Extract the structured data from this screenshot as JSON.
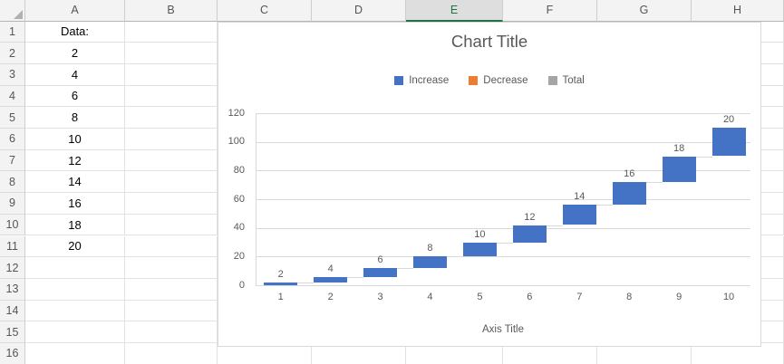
{
  "spreadsheet": {
    "column_headers": [
      "A",
      "B",
      "C",
      "D",
      "E",
      "F",
      "G",
      "H"
    ],
    "selected_column": "E",
    "row_labels": [
      "1",
      "2",
      "3",
      "4",
      "5",
      "6",
      "7",
      "8",
      "9",
      "10",
      "11",
      "12",
      "13",
      "14",
      "15",
      "16"
    ],
    "col_a": [
      "Data:",
      "2",
      "4",
      "6",
      "8",
      "10",
      "12",
      "14",
      "16",
      "18",
      "20"
    ]
  },
  "chart_data": {
    "type": "bar",
    "subtype": "waterfall",
    "title": "Chart Title",
    "xlabel": "Axis Title",
    "ylabel": "",
    "categories": [
      "1",
      "2",
      "3",
      "4",
      "5",
      "6",
      "7",
      "8",
      "9",
      "10"
    ],
    "values": [
      2,
      4,
      6,
      8,
      10,
      12,
      14,
      16,
      18,
      20
    ],
    "cumulative_tops": [
      2,
      6,
      12,
      20,
      30,
      42,
      56,
      72,
      90,
      110
    ],
    "data_labels": [
      "2",
      "4",
      "6",
      "8",
      "10",
      "12",
      "14",
      "16",
      "18",
      "20"
    ],
    "ylim": [
      0,
      120
    ],
    "yticks": [
      0,
      20,
      40,
      60,
      80,
      100,
      120
    ],
    "grid": true,
    "legend_position": "top",
    "legend": [
      {
        "label": "Increase",
        "color": "#4472C4"
      },
      {
        "label": "Decrease",
        "color": "#ED7D31"
      },
      {
        "label": "Total",
        "color": "#A5A5A5"
      }
    ],
    "bar_color": "#4472C4",
    "colors": {
      "gridline": "#d9d9d9",
      "text": "#595959",
      "selected_header_green": "#217346"
    }
  }
}
